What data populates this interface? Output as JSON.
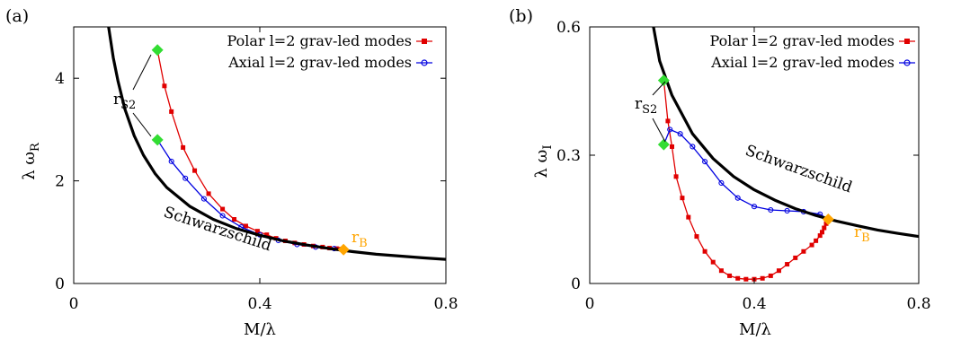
{
  "chart_data": [
    {
      "type": "line",
      "panel_label": "(a)",
      "xlabel": "M/λ",
      "ylabel": "λ ω",
      "ylabel_sub": "R",
      "xlim": [
        0,
        0.8
      ],
      "ylim": [
        0,
        5
      ],
      "xticks": [
        "0",
        "0.4",
        "0.8"
      ],
      "yticks": [
        "0",
        "2",
        "4"
      ],
      "xtick_values": [
        0,
        0.4,
        0.8
      ],
      "ytick_values": [
        0,
        2,
        4
      ],
      "legend_position": "top-right",
      "series": [
        {
          "name": "Polar l=2 grav-led modes",
          "color": "#e00000",
          "marker": "square",
          "x": [
            0.18,
            0.195,
            0.21,
            0.235,
            0.26,
            0.29,
            0.32,
            0.345,
            0.37,
            0.395,
            0.415,
            0.435,
            0.455,
            0.475,
            0.495,
            0.515,
            0.535,
            0.55,
            0.565,
            0.575
          ],
          "y": [
            4.55,
            3.85,
            3.35,
            2.65,
            2.2,
            1.75,
            1.45,
            1.25,
            1.12,
            1.02,
            0.95,
            0.88,
            0.83,
            0.79,
            0.76,
            0.73,
            0.71,
            0.69,
            0.68,
            0.67
          ]
        },
        {
          "name": "Axial l=2 grav-led modes",
          "color": "#0000e0",
          "marker": "circle",
          "x": [
            0.18,
            0.21,
            0.24,
            0.28,
            0.32,
            0.36,
            0.4,
            0.44,
            0.48,
            0.52,
            0.56
          ],
          "y": [
            2.8,
            2.38,
            2.05,
            1.65,
            1.32,
            1.1,
            0.95,
            0.84,
            0.76,
            0.71,
            0.68
          ]
        },
        {
          "name": "Schwarzschild",
          "color": "#000000",
          "marker": "none",
          "x": [
            0.075,
            0.085,
            0.095,
            0.11,
            0.13,
            0.15,
            0.175,
            0.2,
            0.25,
            0.3,
            0.35,
            0.4,
            0.45,
            0.5,
            0.55,
            0.6,
            0.65,
            0.7,
            0.75,
            0.8
          ],
          "y": [
            5.0,
            4.4,
            3.95,
            3.4,
            2.88,
            2.5,
            2.14,
            1.87,
            1.5,
            1.25,
            1.07,
            0.94,
            0.83,
            0.75,
            0.68,
            0.62,
            0.57,
            0.535,
            0.5,
            0.47
          ]
        }
      ],
      "special_points": [
        {
          "label": "r_S2",
          "x": 0.18,
          "y": 4.55,
          "color": "#33dd33"
        },
        {
          "label": "r_S2",
          "x": 0.18,
          "y": 2.8,
          "color": "#33dd33"
        },
        {
          "label": "r_B",
          "x": 0.58,
          "y": 0.66,
          "color": "#ffa500"
        }
      ],
      "annotations": {
        "rs2_main": "r",
        "rs2_sub": "S2",
        "rb_main": "r",
        "rb_sub": "B",
        "schwarzschild": "Schwarzschild"
      }
    },
    {
      "type": "line",
      "panel_label": "(b)",
      "xlabel": "M/λ",
      "ylabel": "λ ω",
      "ylabel_sub": "I",
      "xlim": [
        0,
        0.8
      ],
      "ylim": [
        0,
        0.6
      ],
      "xticks": [
        "0",
        "0.4",
        "0.8"
      ],
      "yticks": [
        "0",
        "0.3",
        "0.6"
      ],
      "xtick_values": [
        0,
        0.4,
        0.8
      ],
      "ytick_values": [
        0,
        0.3,
        0.6
      ],
      "legend_position": "top-right",
      "series": [
        {
          "name": "Polar l=2 grav-led modes",
          "color": "#e00000",
          "marker": "square",
          "x": [
            0.18,
            0.19,
            0.2,
            0.21,
            0.225,
            0.24,
            0.26,
            0.28,
            0.3,
            0.32,
            0.34,
            0.36,
            0.38,
            0.4,
            0.42,
            0.44,
            0.46,
            0.48,
            0.5,
            0.52,
            0.54,
            0.55,
            0.56,
            0.565,
            0.57,
            0.575,
            0.58
          ],
          "y": [
            0.475,
            0.38,
            0.32,
            0.25,
            0.2,
            0.155,
            0.11,
            0.075,
            0.05,
            0.03,
            0.018,
            0.012,
            0.01,
            0.01,
            0.012,
            0.018,
            0.03,
            0.045,
            0.06,
            0.075,
            0.09,
            0.1,
            0.112,
            0.12,
            0.13,
            0.14,
            0.15
          ]
        },
        {
          "name": "Axial l=2 grav-led modes",
          "color": "#0000e0",
          "marker": "circle",
          "x": [
            0.18,
            0.195,
            0.22,
            0.25,
            0.28,
            0.32,
            0.36,
            0.4,
            0.44,
            0.48,
            0.52,
            0.56,
            0.58
          ],
          "y": [
            0.325,
            0.36,
            0.35,
            0.32,
            0.285,
            0.235,
            0.2,
            0.18,
            0.172,
            0.17,
            0.168,
            0.162,
            0.15
          ]
        },
        {
          "name": "Schwarzschild",
          "color": "#000000",
          "marker": "none",
          "x": [
            0.155,
            0.17,
            0.2,
            0.25,
            0.3,
            0.35,
            0.4,
            0.45,
            0.5,
            0.55,
            0.6,
            0.65,
            0.7,
            0.75,
            0.8
          ],
          "y": [
            0.6,
            0.52,
            0.44,
            0.35,
            0.292,
            0.25,
            0.219,
            0.195,
            0.175,
            0.159,
            0.146,
            0.135,
            0.125,
            0.117,
            0.11
          ]
        }
      ],
      "special_points": [
        {
          "label": "r_S2",
          "x": 0.18,
          "y": 0.475,
          "color": "#33dd33"
        },
        {
          "label": "r_S2",
          "x": 0.18,
          "y": 0.325,
          "color": "#33dd33"
        },
        {
          "label": "r_B",
          "x": 0.58,
          "y": 0.15,
          "color": "#ffa500"
        }
      ],
      "annotations": {
        "rs2_main": "r",
        "rs2_sub": "S2",
        "rb_main": "r",
        "rb_sub": "B",
        "schwarzschild": "Schwarzschild"
      }
    }
  ]
}
